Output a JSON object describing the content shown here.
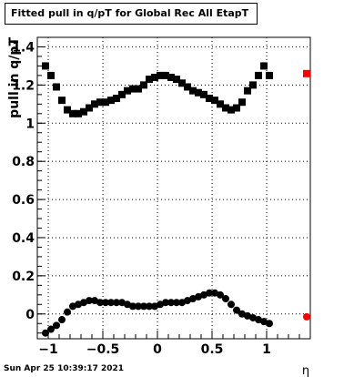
{
  "title": "Fitted pull in q/pT for Global Rec All EtapT",
  "timestamp": "Sun Apr 25 10:39:17 2021",
  "chart_data": {
    "type": "scatter",
    "title": "Fitted pull in q/pT for Global Rec All EtapT",
    "xlabel": "η",
    "ylabel": "pull in q/pT",
    "xlim": [
      -1.1,
      1.4
    ],
    "ylim": [
      -0.13,
      1.45
    ],
    "grid": true,
    "x_ticks": [
      -1,
      -0.5,
      0,
      0.5,
      1
    ],
    "x_tick_labels": [
      "−1",
      "−0.5",
      "0",
      "0.5",
      "1"
    ],
    "y_ticks": [
      0,
      0.2,
      0.4,
      0.6,
      0.8,
      1,
      1.2,
      1.4
    ],
    "y_tick_labels": [
      "0",
      "0.2",
      "0.4",
      "0.6",
      "0.8",
      "1",
      "1.2",
      "1.4"
    ],
    "x": [
      -1.025,
      -0.975,
      -0.925,
      -0.875,
      -0.825,
      -0.775,
      -0.725,
      -0.675,
      -0.625,
      -0.575,
      -0.525,
      -0.475,
      -0.425,
      -0.375,
      -0.325,
      -0.275,
      -0.225,
      -0.175,
      -0.125,
      -0.075,
      -0.025,
      0.025,
      0.075,
      0.125,
      0.175,
      0.225,
      0.275,
      0.325,
      0.375,
      0.425,
      0.475,
      0.525,
      0.575,
      0.625,
      0.675,
      0.725,
      0.775,
      0.825,
      0.875,
      0.925,
      0.975,
      1.025
    ],
    "series": [
      {
        "marker": "square",
        "color": "#000000",
        "values": [
          1.3,
          1.25,
          1.19,
          1.12,
          1.07,
          1.05,
          1.05,
          1.06,
          1.08,
          1.1,
          1.11,
          1.11,
          1.12,
          1.13,
          1.15,
          1.17,
          1.18,
          1.18,
          1.2,
          1.23,
          1.24,
          1.25,
          1.25,
          1.24,
          1.23,
          1.21,
          1.19,
          1.17,
          1.16,
          1.15,
          1.13,
          1.12,
          1.1,
          1.08,
          1.07,
          1.08,
          1.11,
          1.17,
          1.2,
          1.25,
          1.3,
          1.25
        ]
      },
      {
        "marker": "circle",
        "color": "#000000",
        "values": [
          -0.1,
          -0.08,
          -0.06,
          -0.03,
          0.01,
          0.04,
          0.05,
          0.06,
          0.07,
          0.07,
          0.06,
          0.06,
          0.06,
          0.06,
          0.06,
          0.05,
          0.04,
          0.04,
          0.04,
          0.04,
          0.04,
          0.05,
          0.06,
          0.06,
          0.06,
          0.06,
          0.07,
          0.08,
          0.09,
          0.1,
          0.11,
          0.11,
          0.1,
          0.08,
          0.05,
          0.02,
          0.0,
          -0.01,
          -0.02,
          -0.03,
          -0.04,
          -0.05
        ]
      }
    ],
    "overflow_markers": [
      {
        "marker": "square",
        "color": "#ff0000",
        "y": 1.26
      },
      {
        "marker": "circle",
        "color": "#ff0000",
        "y": -0.015
      }
    ]
  }
}
